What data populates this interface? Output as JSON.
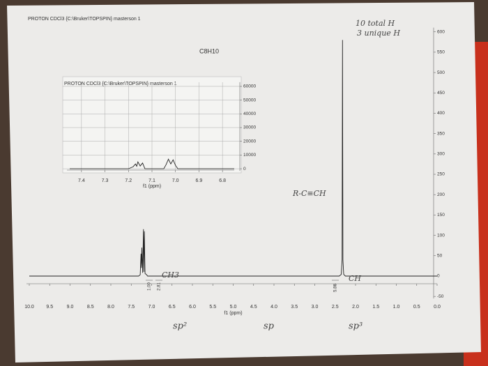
{
  "chart_data": [
    {
      "type": "line",
      "title": "PROTON CDCl3 {C:\\Bruker\\TOPSPIN} masterson 1",
      "subtitle": "C8H10",
      "xlabel": "f1 (ppm)",
      "xlim": [
        10.0,
        0.0
      ],
      "xticks": [
        {
          "value": 10.0,
          "label": "10.0"
        },
        9.5,
        {
          "value": 9.0,
          "label": "9.0"
        },
        8.5,
        {
          "value": 8.0,
          "label": "8.0"
        },
        7.5,
        {
          "value": 7.0,
          "label": "7.0"
        },
        6.5,
        {
          "value": 6.0,
          "label": "6.0"
        },
        5.5,
        {
          "value": 5.0,
          "label": "5.0"
        },
        4.5,
        {
          "value": 4.0,
          "label": "4.0"
        },
        3.5,
        {
          "value": 3.0,
          "label": "3.0"
        },
        2.5,
        {
          "value": 2.0,
          "label": "2.0"
        },
        1.5,
        {
          "value": 1.0,
          "label": "1.0"
        },
        0.5,
        {
          "value": 0.0,
          "label": "0.0"
        }
      ],
      "ylim": [
        -60,
        620
      ],
      "yticks": [
        -50,
        0,
        50,
        100,
        150,
        200,
        250,
        300,
        350,
        400,
        450,
        500,
        550,
        600
      ],
      "color": "#222222",
      "x": [
        10.0,
        7.32,
        7.28,
        7.26,
        7.25,
        7.24,
        7.22,
        7.2,
        7.19,
        7.18,
        7.16,
        7.13,
        7.1,
        2.4,
        2.35,
        2.33,
        2.32,
        2.31,
        2.29,
        2.25,
        0.0
      ],
      "values": [
        0,
        0,
        3,
        55,
        20,
        70,
        8,
        115,
        10,
        110,
        6,
        4,
        0,
        0,
        4,
        40,
        580,
        40,
        4,
        0,
        0
      ],
      "integral_labels": [
        "1.00",
        "2.81",
        "5.86"
      ],
      "annotations": [
        "10 total H",
        "3 unique H",
        "R-C≡CH",
        "CH3",
        "CH",
        "sp²",
        "sp",
        "sp³"
      ]
    },
    {
      "type": "line",
      "title": "PROTON CDCl3 {C:\\Bruker\\TOPSPIN} masterson 1",
      "xlabel": "f1 (ppm)",
      "xlim": [
        7.45,
        6.75
      ],
      "xticks": [
        7.4,
        7.3,
        7.2,
        7.1,
        {
          "value": 7.0,
          "label": "7.0"
        },
        6.9,
        6.8
      ],
      "ylim": [
        -3000,
        63000
      ],
      "yticks": [
        0,
        10000,
        20000,
        30000,
        40000,
        50000,
        60000
      ],
      "grid": true,
      "color": "#222222",
      "x": [
        7.45,
        7.2,
        7.18,
        7.17,
        7.165,
        7.16,
        7.15,
        7.14,
        7.13,
        7.05,
        7.04,
        7.03,
        7.02,
        7.01,
        7.0,
        6.99,
        6.75
      ],
      "values": [
        0,
        0,
        1500,
        3500,
        1800,
        5000,
        2000,
        4200,
        0,
        0,
        3000,
        7000,
        3500,
        6500,
        2500,
        0,
        0
      ]
    }
  ]
}
